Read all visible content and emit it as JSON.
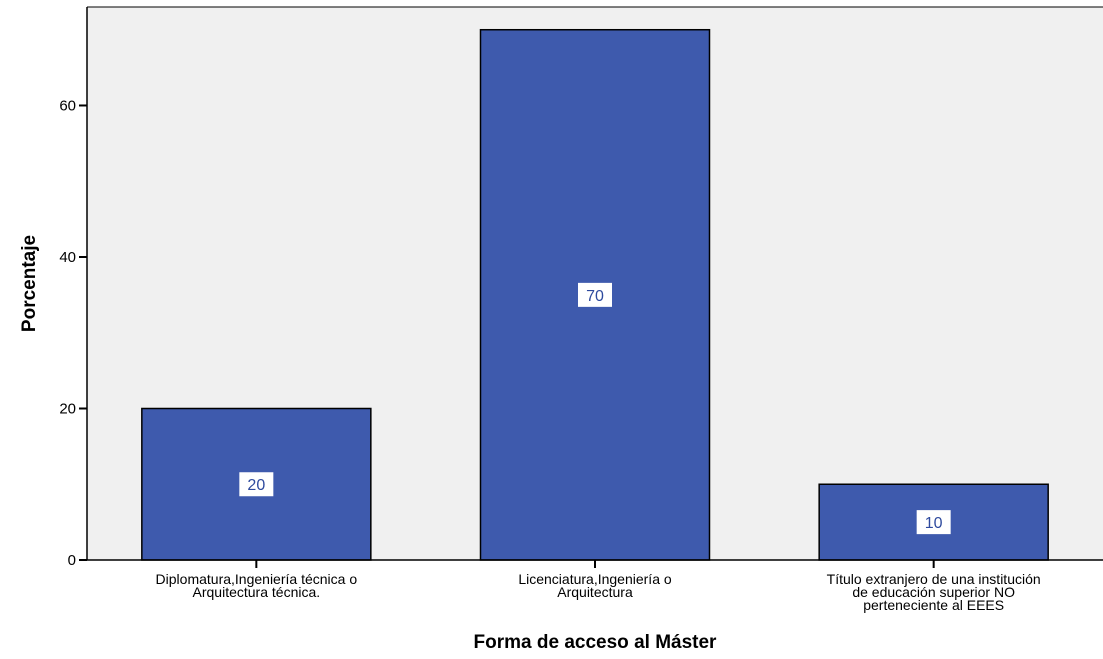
{
  "chart_data": {
    "type": "bar",
    "categories": [
      [
        "Diplomatura,Ingeniería técnica o",
        "Arquitectura técnica."
      ],
      [
        "Licenciatura,Ingeniería o",
        "Arquitectura"
      ],
      [
        "Título extranjero de una institución",
        "de educación superior NO",
        "perteneciente al EEES"
      ]
    ],
    "values": [
      20,
      70,
      10
    ],
    "data_labels": [
      "20",
      "70",
      "10"
    ],
    "xlabel": "Forma de acceso al Máster",
    "ylabel": "Porcentaje",
    "ylim": [
      0,
      73
    ],
    "yticks": [
      0,
      20,
      40,
      60
    ],
    "ytick_labels": [
      "0",
      "20",
      "40",
      "60"
    ],
    "grid": false,
    "colors": {
      "bar": "#3e5aad",
      "plot_background": "#f0f0f0",
      "data_label_text": "#2e4a9e"
    }
  }
}
